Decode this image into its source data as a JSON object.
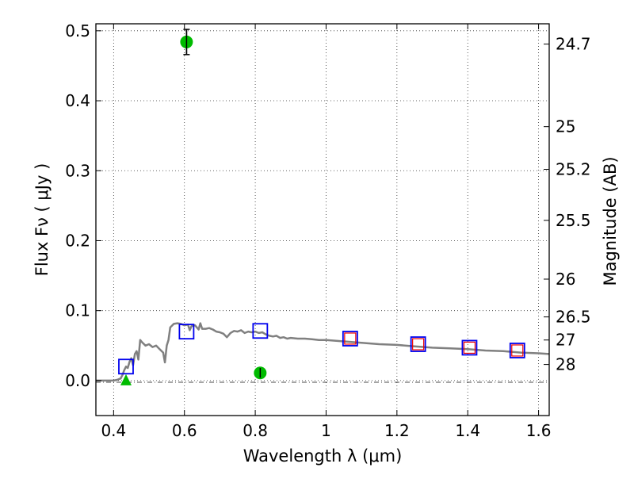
{
  "chart_data": {
    "type": "scatter",
    "title": "",
    "xlabel": "Wavelength  λ (μm)",
    "ylabel": "Flux  Fν  ( μJy )",
    "y2label": "Magnitude (AB)",
    "xlim": [
      0.35,
      1.63
    ],
    "ylim": [
      -0.05,
      0.51
    ],
    "grid": true,
    "x_ticks": [
      0.4,
      0.6,
      0.8,
      1.0,
      1.2,
      1.4,
      1.6
    ],
    "x_tick_labels": [
      "0.4",
      "0.6",
      "0.8",
      "1",
      "1.2",
      "1.4",
      "1.6"
    ],
    "y_ticks": [
      0.0,
      0.1,
      0.2,
      0.3,
      0.4,
      0.5
    ],
    "y_tick_labels": [
      "0.0",
      "0.1",
      "0.2",
      "0.3",
      "0.4",
      "0.5"
    ],
    "y2_ticks": [
      {
        "label": "24.7",
        "flux": 0.481
      },
      {
        "label": "25",
        "flux": 0.363
      },
      {
        "label": "25.2",
        "flux": 0.302
      },
      {
        "label": "25.5",
        "flux": 0.229
      },
      {
        "label": "26",
        "flux": 0.145
      },
      {
        "label": "26.5",
        "flux": 0.091
      },
      {
        "label": "27",
        "flux": 0.058
      },
      {
        "label": "28",
        "flux": 0.023
      }
    ],
    "zero_line": 0.0,
    "model_spectrum": {
      "color": "#808080",
      "x": [
        0.35,
        0.4,
        0.41,
        0.42,
        0.425,
        0.43,
        0.435,
        0.44,
        0.445,
        0.45,
        0.455,
        0.46,
        0.465,
        0.47,
        0.475,
        0.48,
        0.49,
        0.5,
        0.51,
        0.52,
        0.53,
        0.54,
        0.545,
        0.55,
        0.555,
        0.56,
        0.57,
        0.58,
        0.59,
        0.6,
        0.61,
        0.615,
        0.62,
        0.63,
        0.64,
        0.645,
        0.65,
        0.66,
        0.67,
        0.68,
        0.69,
        0.7,
        0.71,
        0.72,
        0.73,
        0.74,
        0.75,
        0.76,
        0.77,
        0.78,
        0.79,
        0.8,
        0.81,
        0.82,
        0.83,
        0.84,
        0.85,
        0.86,
        0.87,
        0.88,
        0.89,
        0.9,
        0.92,
        0.94,
        0.96,
        0.98,
        1.0,
        1.05,
        1.1,
        1.15,
        1.2,
        1.25,
        1.3,
        1.35,
        1.4,
        1.45,
        1.5,
        1.55,
        1.6,
        1.63
      ],
      "y": [
        0.0,
        0.0,
        0.001,
        0.003,
        0.008,
        0.015,
        0.02,
        0.018,
        0.027,
        0.032,
        0.022,
        0.038,
        0.042,
        0.03,
        0.058,
        0.055,
        0.05,
        0.052,
        0.048,
        0.05,
        0.045,
        0.04,
        0.026,
        0.05,
        0.058,
        0.076,
        0.081,
        0.082,
        0.081,
        0.079,
        0.08,
        0.072,
        0.078,
        0.079,
        0.073,
        0.082,
        0.074,
        0.074,
        0.075,
        0.073,
        0.07,
        0.069,
        0.067,
        0.062,
        0.068,
        0.071,
        0.07,
        0.072,
        0.068,
        0.07,
        0.069,
        0.07,
        0.068,
        0.069,
        0.066,
        0.064,
        0.063,
        0.064,
        0.061,
        0.062,
        0.06,
        0.061,
        0.06,
        0.06,
        0.059,
        0.058,
        0.058,
        0.056,
        0.054,
        0.052,
        0.051,
        0.049,
        0.047,
        0.046,
        0.045,
        0.043,
        0.042,
        0.04,
        0.039,
        0.038
      ]
    },
    "series": [
      {
        "marker": "open-square",
        "color": "#0000ee",
        "x": [
          0.435,
          0.606,
          0.814,
          1.068,
          1.26,
          1.405,
          1.54
        ],
        "y": [
          0.02,
          0.07,
          0.071,
          0.06,
          0.052,
          0.047,
          0.043
        ]
      },
      {
        "marker": "open-square",
        "color": "#ee0000",
        "x": [
          1.068,
          1.26,
          1.405,
          1.54
        ],
        "y": [
          0.06,
          0.052,
          0.047,
          0.043
        ]
      },
      {
        "marker": "filled-circle",
        "color": "#00bb00",
        "x": [
          0.606,
          0.814
        ],
        "y": [
          0.484,
          0.011
        ],
        "yerr": [
          0.018,
          0.007
        ]
      },
      {
        "marker": "filled-triangle",
        "color": "#00bb00",
        "x": [
          0.435
        ],
        "y": [
          0.0
        ]
      }
    ]
  }
}
